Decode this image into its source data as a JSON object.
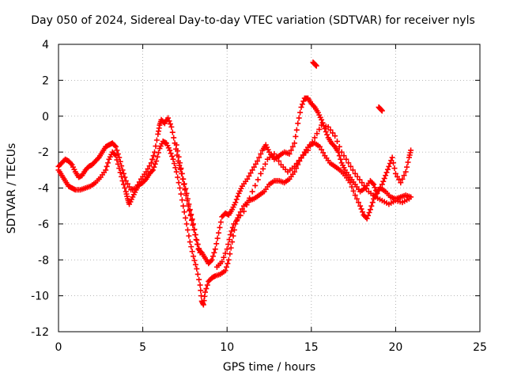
{
  "chart_data": {
    "type": "scatter",
    "title": "Day 050 of 2024, Sidereal Day-to-day VTEC variation (SDTVAR) for receiver nyls",
    "xlabel": "GPS time / hours",
    "ylabel": "SDTVAR / TECUs",
    "xlim": [
      0,
      25
    ],
    "ylim": [
      -12,
      4
    ],
    "x_ticks": [
      "0",
      "5",
      "10",
      "15",
      "20",
      "25"
    ],
    "y_ticks": [
      "-12",
      "-10",
      "-8",
      "-6",
      "-4",
      "-2",
      "0",
      "2",
      "4"
    ],
    "grid": true,
    "marker": "+",
    "series_color": "#ff0000",
    "series": [
      {
        "points": [
          [
            0.0,
            -3.0
          ],
          [
            0.2,
            -3.3
          ],
          [
            0.4,
            -3.6
          ],
          [
            0.6,
            -3.9
          ],
          [
            0.8,
            -4.0
          ],
          [
            1.0,
            -4.1
          ],
          [
            1.3,
            -4.1
          ],
          [
            1.6,
            -4.0
          ],
          [
            1.9,
            -3.9
          ],
          [
            2.2,
            -3.7
          ],
          [
            2.5,
            -3.4
          ],
          [
            2.8,
            -3.0
          ],
          [
            3.0,
            -2.4
          ],
          [
            3.2,
            -2.0
          ],
          [
            3.4,
            -2.2
          ],
          [
            3.6,
            -2.9
          ],
          [
            3.8,
            -3.6
          ],
          [
            4.0,
            -4.2
          ],
          [
            4.1,
            -4.6
          ],
          [
            4.2,
            -4.9
          ],
          [
            4.4,
            -4.5
          ],
          [
            4.6,
            -4.1
          ],
          [
            4.8,
            -3.8
          ],
          [
            5.0,
            -3.7
          ],
          [
            5.2,
            -3.5
          ],
          [
            5.4,
            -3.2
          ],
          [
            5.6,
            -3.0
          ],
          [
            5.8,
            -2.5
          ],
          [
            6.0,
            -1.8
          ],
          [
            6.2,
            -1.4
          ],
          [
            6.4,
            -1.5
          ],
          [
            6.6,
            -1.9
          ],
          [
            6.8,
            -2.4
          ],
          [
            7.0,
            -3.1
          ],
          [
            7.2,
            -4.0
          ],
          [
            7.4,
            -5.0
          ],
          [
            7.6,
            -6.0
          ],
          [
            7.8,
            -7.0
          ],
          [
            8.0,
            -7.8
          ],
          [
            8.2,
            -8.5
          ],
          [
            8.4,
            -9.4
          ],
          [
            8.5,
            -10.3
          ],
          [
            8.6,
            -10.5
          ],
          [
            8.7,
            -9.8
          ],
          [
            8.9,
            -9.2
          ],
          [
            9.1,
            -9.0
          ],
          [
            9.3,
            -8.9
          ],
          [
            9.6,
            -8.8
          ],
          [
            9.9,
            -8.6
          ],
          [
            10.1,
            -8.0
          ],
          [
            10.3,
            -7.0
          ],
          [
            10.5,
            -6.0
          ],
          [
            10.7,
            -5.5
          ],
          [
            11.0,
            -5.0
          ],
          [
            11.3,
            -4.7
          ],
          [
            11.6,
            -4.6
          ],
          [
            11.9,
            -4.4
          ],
          [
            12.2,
            -4.2
          ],
          [
            12.5,
            -3.8
          ],
          [
            12.8,
            -3.6
          ],
          [
            13.1,
            -3.6
          ],
          [
            13.4,
            -3.7
          ],
          [
            13.7,
            -3.5
          ],
          [
            14.0,
            -3.1
          ],
          [
            14.3,
            -2.5
          ],
          [
            14.6,
            -2.0
          ],
          [
            14.9,
            -1.6
          ],
          [
            15.2,
            -1.5
          ],
          [
            15.5,
            -1.7
          ],
          [
            15.8,
            -2.2
          ],
          [
            16.1,
            -2.6
          ],
          [
            16.4,
            -2.8
          ],
          [
            16.7,
            -3.0
          ],
          [
            17.0,
            -3.3
          ],
          [
            17.3,
            -3.7
          ],
          [
            17.6,
            -4.4
          ],
          [
            17.9,
            -5.0
          ],
          [
            18.1,
            -5.5
          ],
          [
            18.3,
            -5.7
          ],
          [
            18.5,
            -5.2
          ],
          [
            18.7,
            -4.6
          ],
          [
            18.9,
            -4.2
          ],
          [
            19.1,
            -4.0
          ],
          [
            19.4,
            -4.2
          ],
          [
            19.7,
            -4.5
          ],
          [
            20.0,
            -4.6
          ],
          [
            20.3,
            -4.5
          ],
          [
            20.6,
            -4.4
          ],
          [
            20.9,
            -4.5
          ]
        ]
      },
      {
        "points": [
          [
            0.0,
            -2.8
          ],
          [
            0.2,
            -2.6
          ],
          [
            0.4,
            -2.4
          ],
          [
            0.6,
            -2.5
          ],
          [
            0.8,
            -2.7
          ],
          [
            1.0,
            -3.1
          ],
          [
            1.2,
            -3.4
          ],
          [
            1.4,
            -3.3
          ],
          [
            1.6,
            -3.0
          ],
          [
            1.8,
            -2.8
          ],
          [
            2.0,
            -2.7
          ],
          [
            2.2,
            -2.5
          ],
          [
            2.4,
            -2.3
          ],
          [
            2.6,
            -2.0
          ],
          [
            2.8,
            -1.7
          ],
          [
            3.0,
            -1.6
          ],
          [
            3.2,
            -1.5
          ],
          [
            3.4,
            -1.7
          ],
          [
            3.6,
            -2.3
          ],
          [
            3.8,
            -3.0
          ],
          [
            4.0,
            -3.6
          ],
          [
            4.3,
            -4.1
          ],
          [
            4.6,
            -4.0
          ],
          [
            4.9,
            -3.5
          ],
          [
            5.2,
            -3.1
          ],
          [
            5.5,
            -2.6
          ],
          [
            5.7,
            -2.0
          ],
          [
            5.9,
            -1.0
          ],
          [
            6.0,
            -0.5
          ],
          [
            6.1,
            -0.2
          ],
          [
            6.3,
            -0.4
          ],
          [
            6.5,
            -0.1
          ],
          [
            6.7,
            -0.6
          ],
          [
            6.9,
            -1.5
          ],
          [
            7.1,
            -2.5
          ],
          [
            7.3,
            -3.2
          ],
          [
            7.5,
            -4.1
          ],
          [
            7.7,
            -5.0
          ],
          [
            7.9,
            -5.8
          ],
          [
            8.1,
            -6.6
          ],
          [
            8.3,
            -7.4
          ],
          [
            8.5,
            -7.6
          ],
          [
            8.7,
            -7.9
          ],
          [
            8.9,
            -8.2
          ],
          [
            9.1,
            -8.0
          ],
          [
            9.3,
            -7.4
          ],
          [
            9.5,
            -6.5
          ],
          [
            9.7,
            -5.6
          ],
          [
            9.9,
            -5.4
          ],
          [
            10.1,
            -5.5
          ],
          [
            10.3,
            -5.2
          ],
          [
            10.5,
            -4.8
          ],
          [
            10.7,
            -4.3
          ],
          [
            10.9,
            -3.9
          ],
          [
            11.2,
            -3.5
          ],
          [
            11.5,
            -3.0
          ],
          [
            11.8,
            -2.5
          ],
          [
            12.1,
            -1.9
          ],
          [
            12.3,
            -1.6
          ],
          [
            12.5,
            -2.0
          ],
          [
            12.8,
            -2.4
          ],
          [
            13.1,
            -2.2
          ],
          [
            13.4,
            -2.0
          ],
          [
            13.7,
            -2.1
          ],
          [
            14.0,
            -1.5
          ],
          [
            14.2,
            -0.4
          ],
          [
            14.4,
            0.5
          ],
          [
            14.6,
            1.0
          ],
          [
            14.8,
            1.0
          ],
          [
            15.0,
            0.7
          ],
          [
            15.2,
            0.5
          ],
          [
            15.4,
            0.2
          ],
          [
            15.6,
            -0.2
          ],
          [
            15.8,
            -0.7
          ],
          [
            16.0,
            -1.2
          ],
          [
            16.2,
            -1.5
          ],
          [
            16.4,
            -1.7
          ],
          [
            16.6,
            -2.0
          ],
          [
            16.8,
            -2.6
          ],
          [
            17.0,
            -3.0
          ],
          [
            17.3,
            -3.4
          ],
          [
            17.6,
            -3.8
          ],
          [
            17.9,
            -4.2
          ],
          [
            18.2,
            -4.0
          ],
          [
            18.5,
            -3.6
          ],
          [
            18.7,
            -3.8
          ],
          [
            18.9,
            -4.3
          ],
          [
            19.2,
            -3.8
          ],
          [
            19.4,
            -3.3
          ],
          [
            19.6,
            -2.8
          ],
          [
            19.8,
            -2.3
          ],
          [
            20.0,
            -3.2
          ],
          [
            20.3,
            -3.7
          ],
          [
            20.6,
            -3.1
          ],
          [
            20.8,
            -2.3
          ],
          [
            20.9,
            -1.9
          ]
        ]
      },
      {
        "points": [
          [
            7.0,
            -1.6
          ],
          [
            7.2,
            -2.6
          ],
          [
            7.4,
            -3.5
          ],
          [
            7.6,
            -4.3
          ],
          [
            7.8,
            -5.2
          ],
          [
            8.0,
            -6.0
          ],
          [
            8.2,
            -6.9
          ],
          [
            8.4,
            -7.6
          ],
          [
            9.4,
            -8.4
          ],
          [
            9.7,
            -8.1
          ],
          [
            10.0,
            -7.4
          ],
          [
            10.2,
            -6.6
          ],
          [
            10.4,
            -6.0
          ],
          [
            11.0,
            -5.3
          ],
          [
            11.5,
            -4.2
          ],
          [
            12.0,
            -3.2
          ],
          [
            12.4,
            -2.4
          ],
          [
            12.8,
            -2.1
          ],
          [
            13.2,
            -2.7
          ],
          [
            13.6,
            -3.1
          ],
          [
            14.0,
            -2.8
          ],
          [
            14.4,
            -2.3
          ],
          [
            14.8,
            -1.9
          ],
          [
            15.2,
            -1.2
          ],
          [
            15.6,
            -0.5
          ],
          [
            16.0,
            -0.6
          ],
          [
            16.4,
            -1.1
          ],
          [
            16.8,
            -2.0
          ],
          [
            17.2,
            -2.6
          ],
          [
            17.6,
            -3.2
          ],
          [
            18.0,
            -3.7
          ],
          [
            18.4,
            -4.2
          ],
          [
            18.8,
            -4.5
          ],
          [
            19.2,
            -4.7
          ],
          [
            19.6,
            -4.9
          ],
          [
            20.0,
            -4.7
          ],
          [
            20.4,
            -4.8
          ],
          [
            20.8,
            -4.6
          ],
          [
            15.1,
            3.0
          ],
          [
            15.2,
            2.9
          ],
          [
            15.3,
            2.8
          ],
          [
            19.0,
            0.5
          ],
          [
            19.1,
            0.4
          ],
          [
            19.2,
            0.3
          ]
        ]
      }
    ]
  }
}
